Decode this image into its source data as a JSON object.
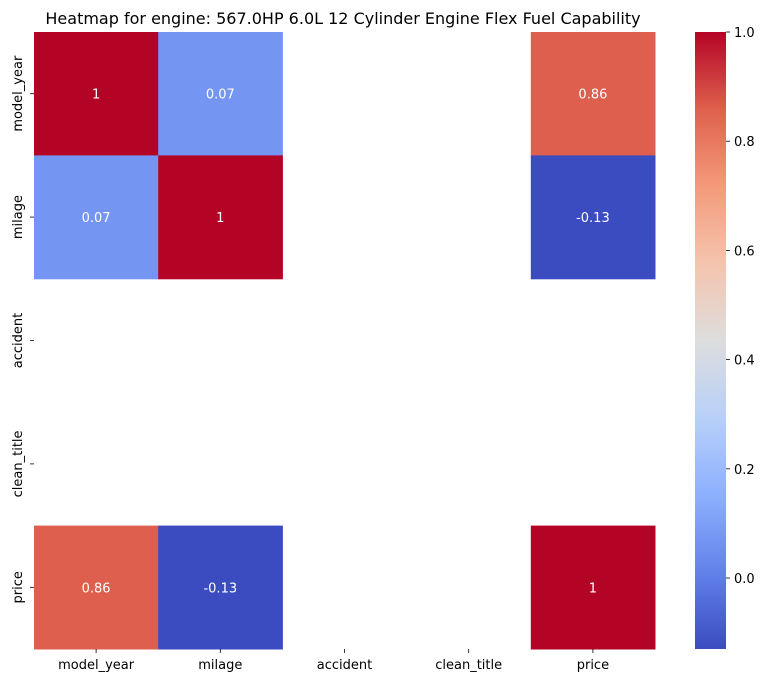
{
  "chart_data": {
    "type": "heatmap",
    "title": "Heatmap for engine: 567.0HP 6.0L 12 Cylinder Engine Flex Fuel Capability",
    "x_labels": [
      "model_year",
      "milage",
      "accident",
      "clean_title",
      "price"
    ],
    "y_labels": [
      "model_year",
      "milage",
      "accident",
      "clean_title",
      "price"
    ],
    "values": [
      [
        1,
        0.07,
        null,
        null,
        0.86
      ],
      [
        0.07,
        1,
        null,
        null,
        -0.13
      ],
      [
        null,
        null,
        null,
        null,
        null
      ],
      [
        null,
        null,
        null,
        null,
        null
      ],
      [
        0.86,
        -0.13,
        null,
        null,
        1
      ]
    ],
    "annotations": [
      [
        "1",
        "0.07",
        "",
        "",
        "0.86"
      ],
      [
        "0.07",
        "1",
        "",
        "",
        "-0.13"
      ],
      [
        "",
        "",
        "",
        "",
        ""
      ],
      [
        "",
        "",
        "",
        "",
        ""
      ],
      [
        "0.86",
        "-0.13",
        "",
        "",
        "1"
      ]
    ],
    "colormap": "coolwarm",
    "vmin": -0.13,
    "vmax": 1.0,
    "colorbar_ticks": [
      -0.0,
      0.2,
      0.4,
      0.6,
      0.8,
      1.0
    ],
    "colorbar_tick_labels": [
      "0.0",
      "0.2",
      "0.4",
      "0.6",
      "0.8",
      "1.0"
    ],
    "grid": false,
    "legend": "colorbar-right"
  }
}
